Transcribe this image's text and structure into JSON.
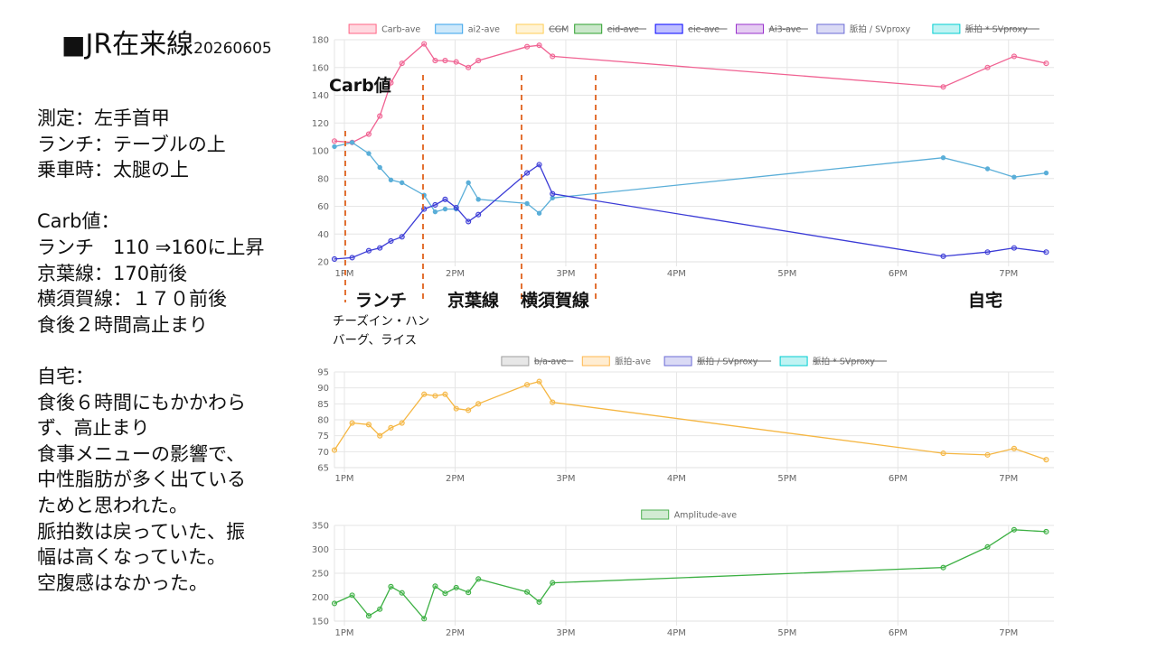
{
  "title": {
    "square": "■",
    "text": "JR在来線",
    "date": "20260605"
  },
  "notes": [
    "測定：左手首甲",
    "ランチ：テーブルの上",
    "乗車時：太腿の上",
    "",
    "Carb値：",
    "ランチ　110 ⇒160に上昇",
    "京葉線：170前後",
    "横須賀線：１７０前後",
    "食後２時間高止まり",
    "",
    "自宅：",
    "食後６時間にもかかわら",
    "ず、高止まり",
    "食事メニューの影響で、",
    "中性脂肪が多く出ている",
    "ためと思われた。",
    "脈拍数は戻っていた、振",
    "幅は高くなっていた。",
    "空腹感はなかった。"
  ],
  "annotations": {
    "carb_label": "Carb値",
    "lunch": "ランチ",
    "keiyo": "京葉線",
    "yokosuka": "横須賀線",
    "home": "自宅",
    "menu_line1": "チーズイン・ハン",
    "menu_line2": "バーグ、ライス"
  },
  "chart_data": [
    {
      "type": "line",
      "x_labels": [
        "1PM",
        "2PM",
        "3PM",
        "4PM",
        "5PM",
        "6PM",
        "7PM"
      ],
      "ylim": [
        20,
        180
      ],
      "y_ticks": [
        20,
        40,
        60,
        80,
        100,
        120,
        140,
        160,
        180
      ],
      "legend": [
        {
          "name": "Carb-ave",
          "color": "#ff6384",
          "hidden": false
        },
        {
          "name": "ai2-ave",
          "color": "#36a2eb",
          "hidden": false
        },
        {
          "name": "CGM",
          "color": "#ffce56",
          "hidden": true
        },
        {
          "name": "eid-ave",
          "color": "#2ca02c",
          "hidden": true
        },
        {
          "name": "eie-ave",
          "color": "#0000ff",
          "hidden": true
        },
        {
          "name": "Ai3-ave",
          "color": "#9932cc",
          "hidden": true
        },
        {
          "name": "脈拍 / SVproxy",
          "color": "#6b6bd6",
          "hidden": false
        },
        {
          "name": "脈拍 * SVproxy",
          "color": "#00ced1",
          "hidden": true
        }
      ],
      "series": [
        {
          "name": "Carb-ave",
          "color": "#f06292",
          "marker": "circle",
          "x": [
            12.91,
            13.07,
            13.22,
            13.32,
            13.42,
            13.52,
            13.72,
            13.82,
            13.91,
            14.01,
            14.12,
            14.21,
            14.65,
            14.76,
            14.88,
            18.41,
            18.81,
            19.05,
            19.34
          ],
          "y": [
            107,
            106,
            112,
            125,
            149,
            163,
            177,
            165,
            165,
            164,
            160,
            165,
            175,
            176,
            168,
            146,
            160,
            168,
            163
          ]
        },
        {
          "name": "ai2-ave",
          "color": "#5aaed8",
          "marker": "dot",
          "x": [
            12.91,
            13.07,
            13.22,
            13.32,
            13.42,
            13.52,
            13.72,
            13.82,
            13.91,
            14.01,
            14.12,
            14.21,
            14.65,
            14.76,
            14.88,
            18.41,
            18.81,
            19.05,
            19.34
          ],
          "y": [
            103,
            106,
            98,
            88,
            79,
            77,
            68,
            56,
            58,
            58,
            77,
            65,
            62,
            55,
            66,
            95,
            87,
            81,
            84
          ]
        },
        {
          "name": "脈拍 / SVproxy",
          "color": "#3b3bd6",
          "marker": "circle",
          "x": [
            12.91,
            13.07,
            13.22,
            13.32,
            13.42,
            13.52,
            13.72,
            13.82,
            13.91,
            14.01,
            14.12,
            14.21,
            14.65,
            14.76,
            14.88,
            18.41,
            18.81,
            19.05,
            19.34
          ],
          "y": [
            22,
            23,
            28,
            30,
            35,
            38,
            58,
            61,
            65,
            59,
            49,
            54,
            84,
            90,
            69,
            24,
            27,
            30,
            27
          ]
        }
      ]
    },
    {
      "type": "line",
      "x_labels": [
        "1PM",
        "2PM",
        "3PM",
        "4PM",
        "5PM",
        "6PM",
        "7PM"
      ],
      "ylim": [
        65,
        95
      ],
      "y_ticks": [
        65,
        70,
        75,
        80,
        85,
        90,
        95
      ],
      "legend": [
        {
          "name": "b/a-ave",
          "color": "#9e9e9e",
          "hidden": true
        },
        {
          "name": "脈拍-ave",
          "color": "#ffb74d",
          "hidden": false
        },
        {
          "name": "脈拍 / SVproxy",
          "color": "#6b6bd6",
          "hidden": true
        },
        {
          "name": "脈拍 * SVproxy",
          "color": "#00ced1",
          "hidden": true
        }
      ],
      "series": [
        {
          "name": "脈拍-ave",
          "color": "#f5b642",
          "marker": "circle",
          "x": [
            12.91,
            13.07,
            13.22,
            13.32,
            13.42,
            13.52,
            13.72,
            13.82,
            13.91,
            14.01,
            14.12,
            14.21,
            14.65,
            14.76,
            14.88,
            18.41,
            18.81,
            19.05,
            19.34
          ],
          "y": [
            70.5,
            79,
            78.5,
            75,
            77.5,
            79,
            88,
            87.5,
            88,
            83.5,
            83,
            85,
            91,
            92,
            85.5,
            69.5,
            69,
            71,
            67.5
          ]
        }
      ]
    },
    {
      "type": "line",
      "x_labels": [
        "1PM",
        "2PM",
        "3PM",
        "4PM",
        "5PM",
        "6PM",
        "7PM"
      ],
      "ylim": [
        150,
        350
      ],
      "y_ticks": [
        150,
        200,
        250,
        300,
        350
      ],
      "legend": [
        {
          "name": "Amplitude-ave",
          "color": "#4caf50",
          "hidden": false
        }
      ],
      "series": [
        {
          "name": "Amplitude-ave",
          "color": "#3cb043",
          "marker": "circle",
          "x": [
            12.91,
            13.07,
            13.22,
            13.32,
            13.42,
            13.52,
            13.72,
            13.82,
            13.91,
            14.01,
            14.12,
            14.21,
            14.65,
            14.76,
            14.88,
            18.41,
            18.81,
            19.05,
            19.34
          ],
          "y": [
            187,
            204,
            161,
            175,
            222,
            209,
            155,
            223,
            208,
            220,
            210,
            238,
            211,
            190,
            230,
            262,
            305,
            341,
            337
          ]
        }
      ]
    }
  ]
}
